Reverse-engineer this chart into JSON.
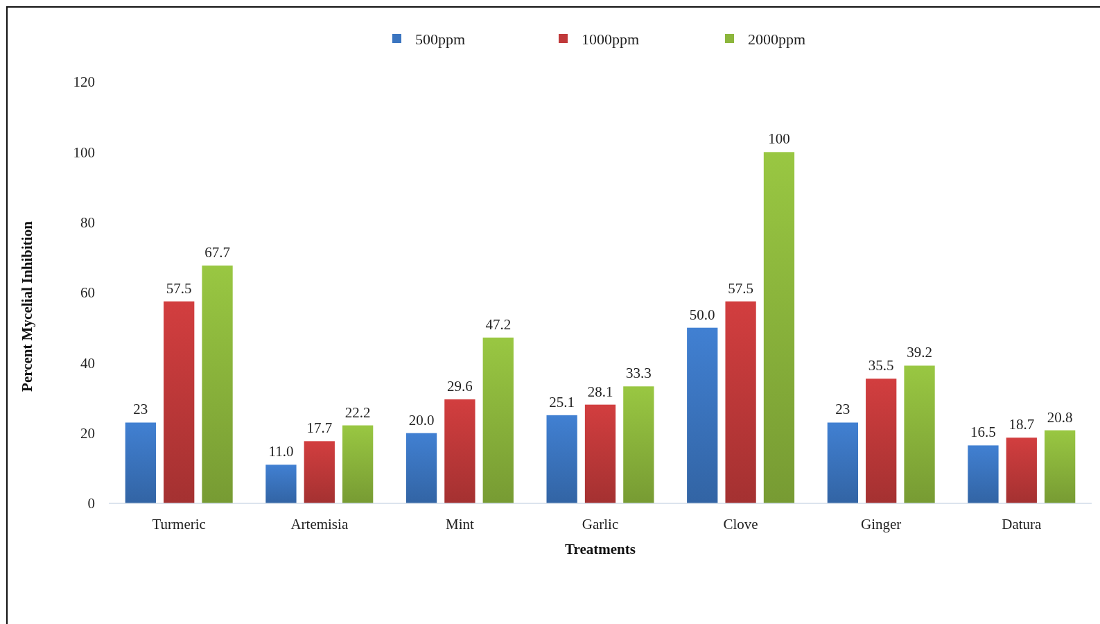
{
  "chart_data": {
    "type": "bar",
    "xlabel": "Treatments",
    "ylabel": "Percent Mycelial Inhibition",
    "categories": [
      "Turmeric",
      "Artemisia",
      "Mint",
      "Garlic",
      "Clove",
      "Ginger",
      "Datura"
    ],
    "series": [
      {
        "name": "500ppm",
        "color": "#3b75c0",
        "values": [
          23,
          11.0,
          20.0,
          25.1,
          50.0,
          23,
          16.5
        ],
        "value_labels": [
          "23",
          "11.0",
          "20.0",
          "25.1",
          "50.0",
          "23",
          "16.5"
        ]
      },
      {
        "name": "1000ppm",
        "color": "#c0393a",
        "values": [
          57.5,
          17.7,
          29.6,
          28.1,
          57.5,
          35.5,
          18.7
        ],
        "value_labels": [
          "57.5",
          "17.7",
          "29.6",
          "28.1",
          "57.5",
          "35.5",
          "18.7"
        ]
      },
      {
        "name": "2000ppm",
        "color": "#8cb63c",
        "values": [
          67.7,
          22.2,
          47.2,
          33.3,
          100,
          39.2,
          20.8
        ],
        "value_labels": [
          "67.7",
          "22.2",
          "47.2",
          "33.3",
          "100",
          "39.2",
          "20.8"
        ]
      }
    ],
    "ylim": [
      0,
      120
    ],
    "yticks": [
      0,
      20,
      40,
      60,
      80,
      100,
      120
    ],
    "legend": "top"
  }
}
